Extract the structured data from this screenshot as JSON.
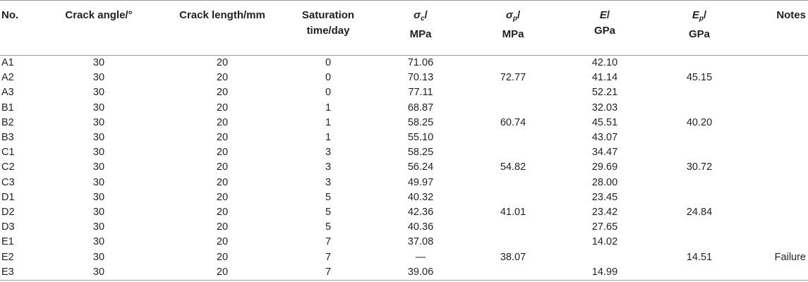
{
  "table": {
    "headers": {
      "no": "No.",
      "crack_angle": "Crack angle/°",
      "crack_length": "Crack length/mm",
      "saturation_line1": "Saturation",
      "saturation_line2": "time/day",
      "sigma_c_symbol": "σ",
      "sigma_c_sub": "c",
      "sigma_c_unit": "MPa",
      "sigma_p_symbol": "σ",
      "sigma_p_sub": "p",
      "sigma_p_unit": "MPa",
      "e_symbol": "E",
      "e_unit": "GPa",
      "ep_symbol": "E",
      "ep_sub": "p",
      "ep_unit": "GPa",
      "notes": "Notes"
    },
    "rows": [
      {
        "no": "A1",
        "angle": "30",
        "length": "20",
        "sat": "0",
        "sc": "71.06",
        "sp": "",
        "e": "42.10",
        "ep": "",
        "notes": ""
      },
      {
        "no": "A2",
        "angle": "30",
        "length": "20",
        "sat": "0",
        "sc": "70.13",
        "sp": "72.77",
        "e": "41.14",
        "ep": "45.15",
        "notes": ""
      },
      {
        "no": "A3",
        "angle": "30",
        "length": "20",
        "sat": "0",
        "sc": "77.11",
        "sp": "",
        "e": "52.21",
        "ep": "",
        "notes": ""
      },
      {
        "no": "B1",
        "angle": "30",
        "length": "20",
        "sat": "1",
        "sc": "68.87",
        "sp": "",
        "e": "32.03",
        "ep": "",
        "notes": ""
      },
      {
        "no": "B2",
        "angle": "30",
        "length": "20",
        "sat": "1",
        "sc": "58.25",
        "sp": "60.74",
        "e": "45.51",
        "ep": "40.20",
        "notes": ""
      },
      {
        "no": "B3",
        "angle": "30",
        "length": "20",
        "sat": "1",
        "sc": "55.10",
        "sp": "",
        "e": "43.07",
        "ep": "",
        "notes": ""
      },
      {
        "no": "C1",
        "angle": "30",
        "length": "20",
        "sat": "3",
        "sc": "58.25",
        "sp": "",
        "e": "34.47",
        "ep": "",
        "notes": ""
      },
      {
        "no": "C2",
        "angle": "30",
        "length": "20",
        "sat": "3",
        "sc": "56.24",
        "sp": "54.82",
        "e": "29.69",
        "ep": "30.72",
        "notes": ""
      },
      {
        "no": "C3",
        "angle": "30",
        "length": "20",
        "sat": "3",
        "sc": "49.97",
        "sp": "",
        "e": "28.00",
        "ep": "",
        "notes": ""
      },
      {
        "no": "D1",
        "angle": "30",
        "length": "20",
        "sat": "5",
        "sc": "40.32",
        "sp": "",
        "e": "23.45",
        "ep": "",
        "notes": ""
      },
      {
        "no": "D2",
        "angle": "30",
        "length": "20",
        "sat": "5",
        "sc": "42.36",
        "sp": "41.01",
        "e": "23.42",
        "ep": "24.84",
        "notes": ""
      },
      {
        "no": "D3",
        "angle": "30",
        "length": "20",
        "sat": "5",
        "sc": "40.36",
        "sp": "",
        "e": "27.65",
        "ep": "",
        "notes": ""
      },
      {
        "no": "E1",
        "angle": "30",
        "length": "20",
        "sat": "7",
        "sc": "37.08",
        "sp": "",
        "e": "14.02",
        "ep": "",
        "notes": ""
      },
      {
        "no": "E2",
        "angle": "30",
        "length": "20",
        "sat": "7",
        "sc": "—",
        "sp": "38.07",
        "e": "",
        "ep": "14.51",
        "notes": "Failure"
      },
      {
        "no": "E3",
        "angle": "30",
        "length": "20",
        "sat": "7",
        "sc": "39.06",
        "sp": "",
        "e": "14.99",
        "ep": "",
        "notes": ""
      }
    ]
  }
}
